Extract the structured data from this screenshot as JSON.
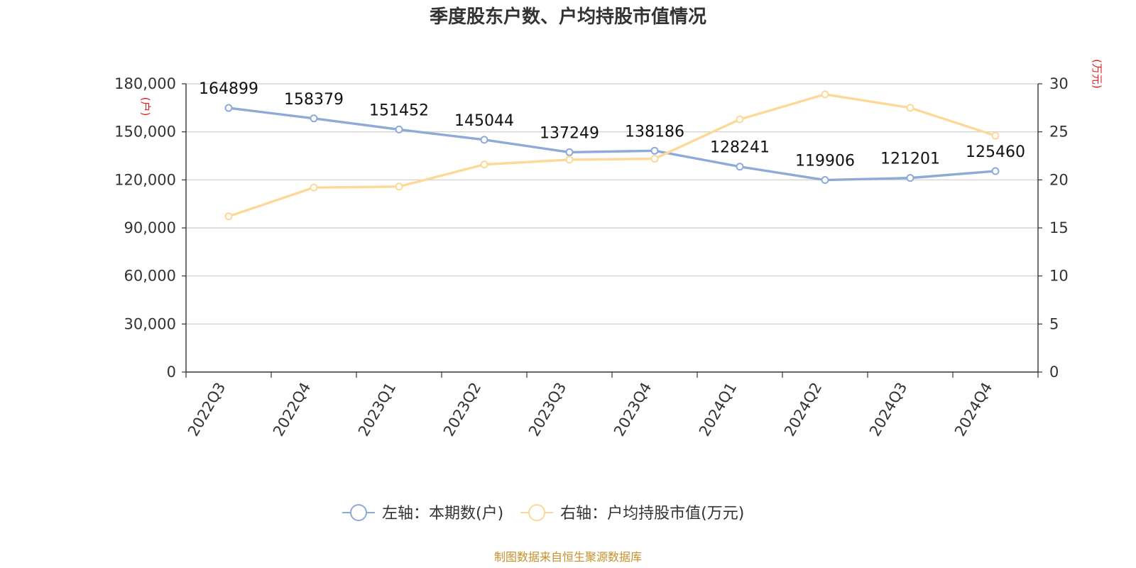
{
  "chart_data": {
    "type": "line",
    "title": "季度股东户数、户均持股市值情况",
    "categories": [
      "2022Q3",
      "2022Q4",
      "2023Q1",
      "2023Q2",
      "2023Q3",
      "2023Q4",
      "2024Q1",
      "2024Q2",
      "2024Q3",
      "2024Q4"
    ],
    "series": [
      {
        "name": "左轴：本期数(户)",
        "axis": "left",
        "color": "#8eaad8",
        "values": [
          164899,
          158379,
          151452,
          145044,
          137249,
          138186,
          128241,
          119906,
          121201,
          125460
        ],
        "labels": [
          "164899",
          "158379",
          "151452",
          "145044",
          "137249",
          "138186",
          "128241",
          "119906",
          "121201",
          "125460"
        ]
      },
      {
        "name": "右轴：户均持股市值(万元)",
        "axis": "right",
        "color": "#fdd898",
        "values": [
          16.2,
          19.2,
          19.3,
          21.6,
          22.1,
          22.2,
          26.3,
          28.9,
          27.5,
          24.6
        ]
      }
    ],
    "left_axis": {
      "unit": "(户)",
      "ylim": [
        0,
        180000
      ],
      "ticks": [
        0,
        30000,
        60000,
        90000,
        120000,
        150000,
        180000
      ],
      "tick_labels": [
        "0",
        "30,000",
        "60,000",
        "90,000",
        "120,000",
        "150,000",
        "180,000"
      ]
    },
    "right_axis": {
      "unit": "(万元)",
      "ylim": [
        0,
        30
      ],
      "ticks": [
        0,
        5,
        10,
        15,
        20,
        25,
        30
      ],
      "tick_labels": [
        "0",
        "5",
        "10",
        "15",
        "20",
        "25",
        "30"
      ]
    },
    "grid": true,
    "legend_position": "bottom-center",
    "source": "制图数据来自恒生聚源数据库"
  }
}
